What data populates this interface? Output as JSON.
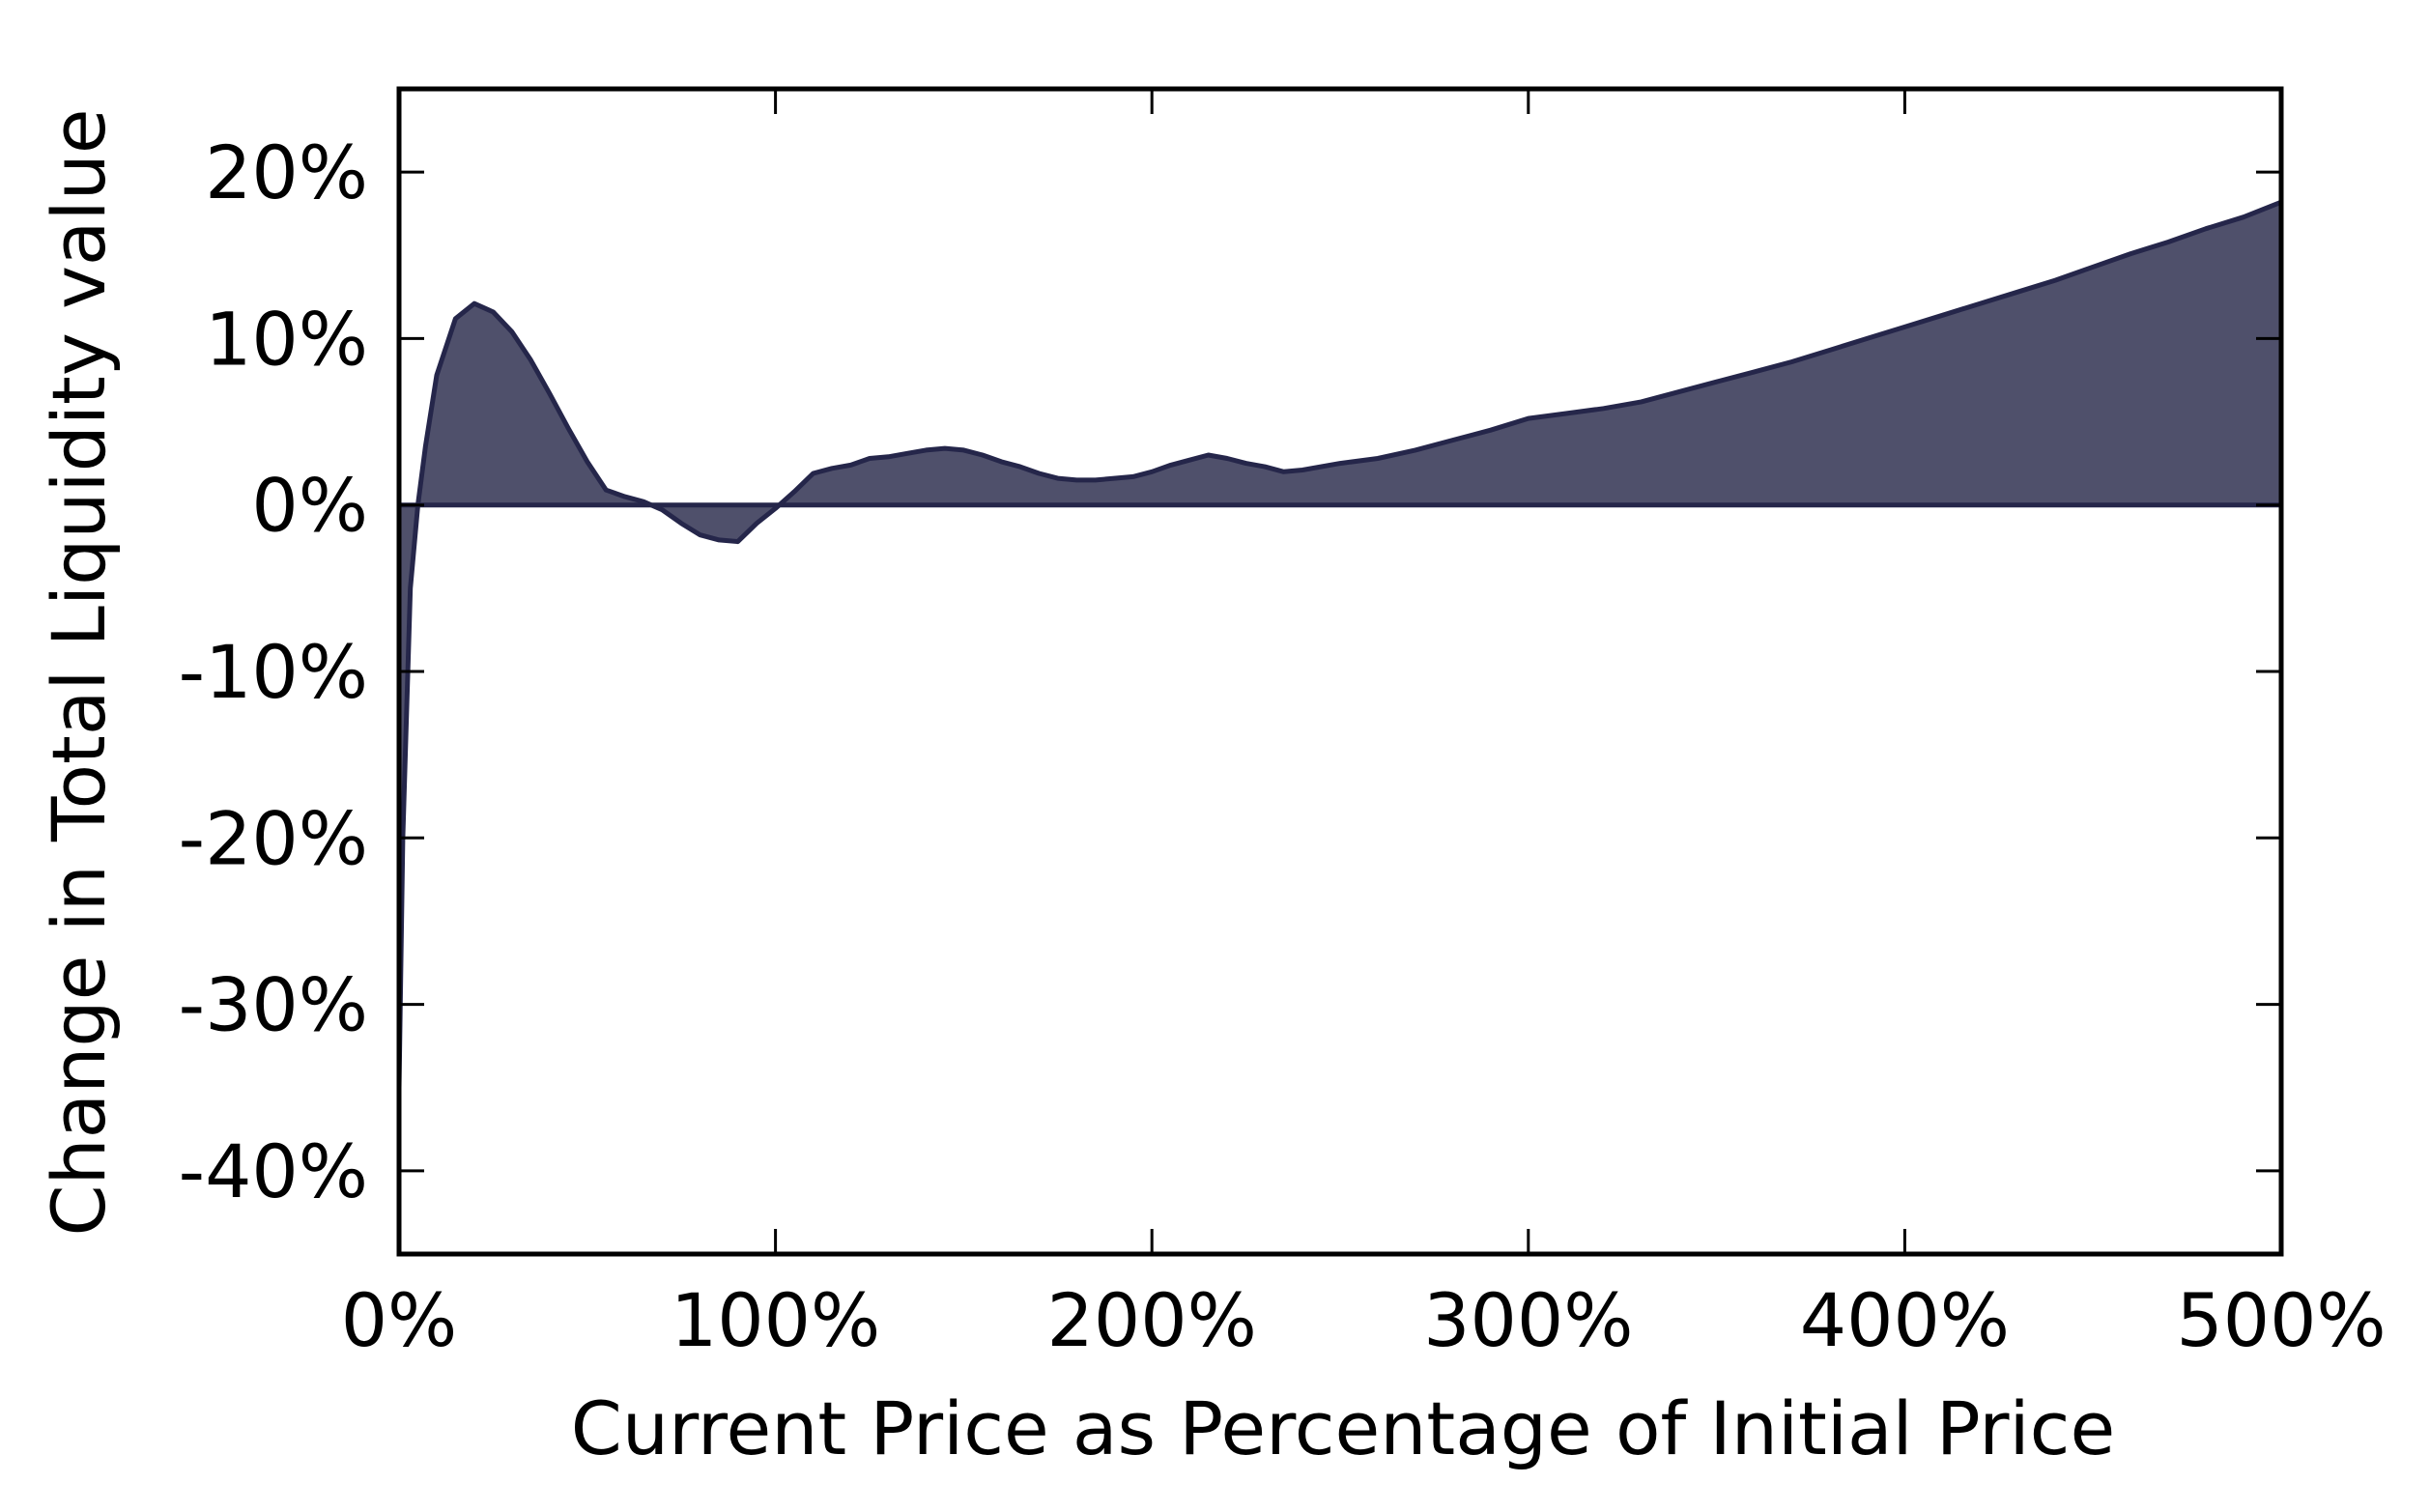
{
  "chart_data": {
    "type": "area",
    "title": "",
    "xlabel": "Current Price as Percentage of Initial Price",
    "ylabel": "Change in Total Liquidity value",
    "xlim": [
      0,
      500
    ],
    "ylim": [
      -45,
      25
    ],
    "x_ticks": [
      {
        "value": 0,
        "label": "0%"
      },
      {
        "value": 100,
        "label": "100%"
      },
      {
        "value": 200,
        "label": "200%"
      },
      {
        "value": 300,
        "label": "300%"
      },
      {
        "value": 400,
        "label": "400%"
      },
      {
        "value": 500,
        "label": "500%"
      }
    ],
    "y_ticks": [
      {
        "value": 20,
        "label": "20%"
      },
      {
        "value": 10,
        "label": "10%"
      },
      {
        "value": 0,
        "label": "0%"
      },
      {
        "value": -10,
        "label": "-10%"
      },
      {
        "value": -20,
        "label": "-20%"
      },
      {
        "value": -30,
        "label": "-30%"
      },
      {
        "value": -40,
        "label": "-40%"
      }
    ],
    "grid": false,
    "legend": "none",
    "colors": {
      "fill": "#4f506b",
      "line": "#25264a",
      "axis": "#000000"
    },
    "series": [
      {
        "x": [
          0,
          1,
          3,
          5,
          7,
          10,
          15,
          20,
          25,
          30,
          35,
          40,
          45,
          50,
          55,
          60,
          65,
          70,
          75,
          80,
          85,
          90,
          95,
          100,
          105,
          110,
          115,
          120,
          125,
          130,
          135,
          140,
          145,
          150,
          155,
          160,
          165,
          170,
          175,
          180,
          185,
          190,
          195,
          200,
          205,
          210,
          215,
          220,
          225,
          230,
          235,
          240,
          250,
          260,
          270,
          280,
          290,
          300,
          310,
          320,
          330,
          340,
          350,
          360,
          370,
          380,
          390,
          400,
          410,
          420,
          430,
          440,
          450,
          460,
          470,
          480,
          490,
          500
        ],
        "values": [
          -35,
          -20,
          -5,
          0,
          3.5,
          7.8,
          11.2,
          12.1,
          11.6,
          10.4,
          8.7,
          6.7,
          4.6,
          2.6,
          0.9,
          0.5,
          0.2,
          -0.3,
          -1.1,
          -1.8,
          -2.1,
          -2.2,
          -1.1,
          -0.2,
          0.8,
          1.9,
          2.2,
          2.4,
          2.8,
          2.9,
          3.1,
          3.3,
          3.4,
          3.3,
          3.0,
          2.6,
          2.3,
          1.9,
          1.6,
          1.5,
          1.5,
          1.6,
          1.7,
          2.0,
          2.4,
          2.7,
          3.0,
          2.8,
          2.5,
          2.3,
          2.0,
          2.1,
          2.5,
          2.8,
          3.3,
          3.9,
          4.5,
          5.2,
          5.5,
          5.8,
          6.2,
          6.8,
          7.4,
          8.0,
          8.6,
          9.3,
          10.0,
          10.7,
          11.4,
          12.1,
          12.8,
          13.5,
          14.3,
          15.1,
          15.8,
          16.6,
          17.3,
          18.2
        ]
      }
    ]
  }
}
